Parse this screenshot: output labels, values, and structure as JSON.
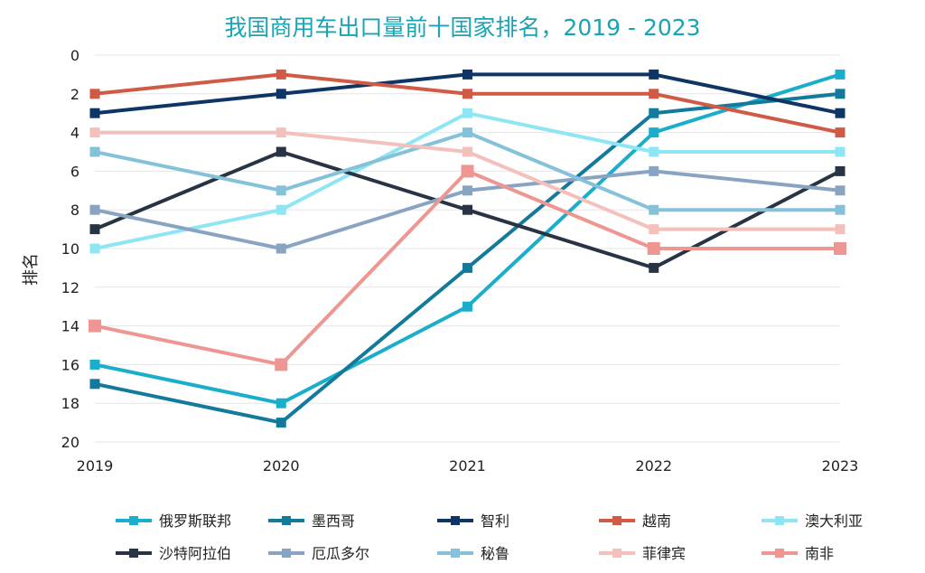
{
  "chart_data": {
    "type": "line",
    "title": "我国商用车出口量前十国家排名，2019 - 2023",
    "xlabel": "",
    "ylabel": "排名",
    "x": [
      "2019",
      "2020",
      "2021",
      "2022",
      "2023"
    ],
    "ylim": [
      0,
      20
    ],
    "y_inverted": true,
    "y_ticks": [
      "0",
      "2",
      "4",
      "6",
      "8",
      "10",
      "12",
      "14",
      "16",
      "18",
      "20"
    ],
    "grid": true,
    "legend_position": "bottom",
    "series": [
      {
        "name": "俄罗斯联邦",
        "values": [
          16,
          18,
          13,
          4,
          1
        ],
        "color": "#1aaecb"
      },
      {
        "name": "墨西哥",
        "values": [
          17,
          19,
          11,
          3,
          2
        ],
        "color": "#137a9c"
      },
      {
        "name": "智利",
        "values": [
          3,
          2,
          1,
          1,
          3
        ],
        "color": "#0f3466"
      },
      {
        "name": "越南",
        "values": [
          2,
          1,
          2,
          2,
          4
        ],
        "color": "#cf5a45"
      },
      {
        "name": "澳大利亚",
        "values": [
          10,
          8,
          3,
          5,
          5
        ],
        "color": "#8ee6f4"
      },
      {
        "name": "沙特阿拉伯",
        "values": [
          9,
          5,
          8,
          11,
          6
        ],
        "color": "#283443"
      },
      {
        "name": "厄瓜多尔",
        "values": [
          8,
          10,
          7,
          6,
          7
        ],
        "color": "#88a4c2"
      },
      {
        "name": "秘鲁",
        "values": [
          5,
          7,
          4,
          8,
          8
        ],
        "color": "#85c2da"
      },
      {
        "name": "菲律宾",
        "values": [
          4,
          4,
          5,
          9,
          9
        ],
        "color": "#f4c0bc"
      },
      {
        "name": "南非",
        "values": [
          14,
          16,
          6,
          10,
          10
        ],
        "color": "#ee9692"
      }
    ]
  }
}
